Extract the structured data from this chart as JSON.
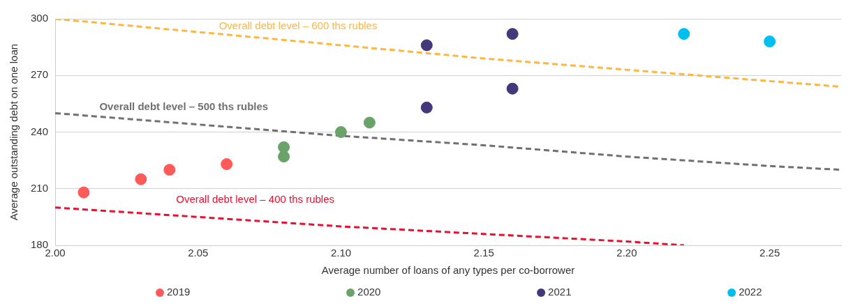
{
  "chart_data": {
    "type": "scatter",
    "xlabel": "Average number of loans of any types per co-borrower",
    "ylabel": "Average outstanding debt on one loan",
    "xlim": [
      2.0,
      2.275
    ],
    "xticks": [
      {
        "value": 2.0,
        "label": "2.00"
      },
      {
        "value": 2.05,
        "label": "2.05"
      },
      {
        "value": 2.1,
        "label": "2.10"
      },
      {
        "value": 2.15,
        "label": "2.15"
      },
      {
        "value": 2.2,
        "label": "2.20"
      },
      {
        "value": 2.25,
        "label": "2.25"
      }
    ],
    "ylim": [
      180,
      300
    ],
    "yticks": [
      180,
      210,
      240,
      270,
      300
    ],
    "grid": "y",
    "legend": "bottom",
    "marker": "circle",
    "series": [
      {
        "name": "2019",
        "color": "#ff5a5a",
        "x": [
          2.01,
          2.03,
          2.04,
          2.06
        ],
        "values": [
          208,
          215,
          220,
          223
        ]
      },
      {
        "name": "2020",
        "color": "#6aa36a",
        "x": [
          2.08,
          2.08,
          2.1,
          2.11
        ],
        "values": [
          232,
          227,
          240,
          245
        ]
      },
      {
        "name": "2021",
        "color": "#44387a",
        "x": [
          2.13,
          2.16,
          2.13,
          2.16
        ],
        "values": [
          286,
          292,
          253,
          263
        ]
      },
      {
        "name": "2022",
        "color": "#00bfef",
        "x": [
          2.22,
          2.25
        ],
        "values": [
          292,
          288
        ]
      },
      {
        "name": "Overall debt level – 600 ths rubles",
        "type": "line",
        "line_style": "dashed",
        "marker": "none",
        "color": "#ffb63c",
        "x": [
          2.0,
          2.05,
          2.1,
          2.15,
          2.2,
          2.25,
          2.275
        ],
        "values": [
          300,
          293,
          286,
          279,
          273,
          267,
          264
        ]
      },
      {
        "name": "Overall debt level – 500 ths rubles",
        "type": "line",
        "line_style": "dashed",
        "marker": "none",
        "color": "#707070",
        "x": [
          2.0,
          2.05,
          2.1,
          2.15,
          2.2,
          2.25,
          2.275
        ],
        "values": [
          250,
          244,
          238,
          233,
          227,
          222,
          220
        ]
      },
      {
        "name": "Overall debt level – 400 ths rubles",
        "type": "line",
        "line_style": "dashed",
        "marker": "none",
        "color": "#e8102e",
        "x": [
          2.0,
          2.05,
          2.1,
          2.15,
          2.2,
          2.22
        ],
        "values": [
          200,
          195,
          190,
          186,
          182,
          180
        ]
      }
    ]
  }
}
